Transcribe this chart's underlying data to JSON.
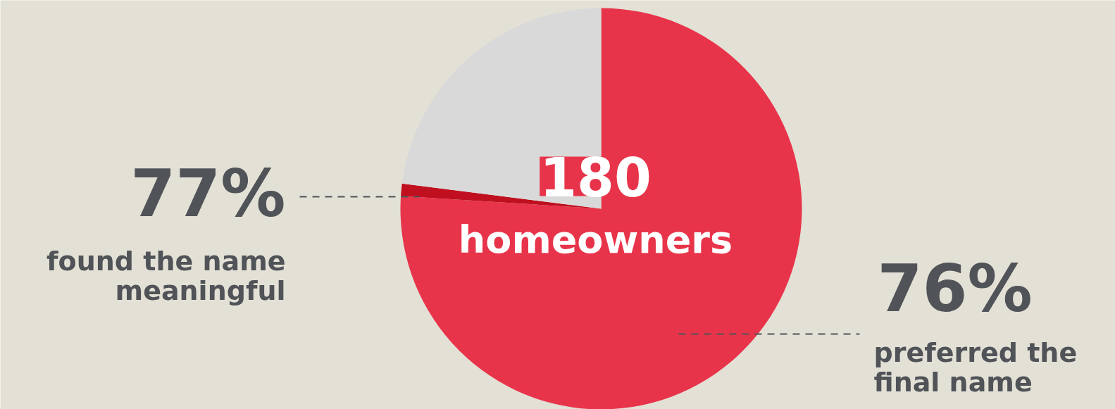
{
  "chart_data": {
    "type": "pie",
    "categories": [
      null,
      null,
      null
    ],
    "values": [
      76,
      1,
      23
    ],
    "colors": [
      "#e8344a",
      "#c0101f",
      "#d9d9d9"
    ],
    "annotations": [
      "180",
      "homeowners",
      "77%",
      "found the name meaningful",
      "76%",
      "preferred the final name"
    ]
  }
}
